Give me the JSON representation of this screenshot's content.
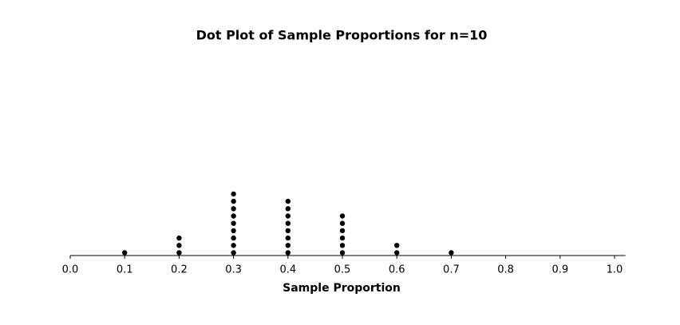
{
  "chart_data": {
    "type": "dot",
    "title": "Dot Plot of Sample Proportions for n=10",
    "x_label": "Sample Proportion",
    "x": [
      0.1,
      0.2,
      0.3,
      0.4,
      0.5,
      0.6,
      0.7
    ],
    "counts": [
      1,
      3,
      9,
      8,
      6,
      2,
      1
    ],
    "color": "#000000",
    "xlim": [
      0,
      1.02
    ],
    "xticks": [
      {
        "value": 0,
        "label": "0.0"
      },
      0.1,
      0.2,
      0.3,
      0.4,
      0.5,
      0.6,
      0.7,
      0.8,
      0.9,
      {
        "value": 1,
        "label": "1.0"
      }
    ]
  }
}
